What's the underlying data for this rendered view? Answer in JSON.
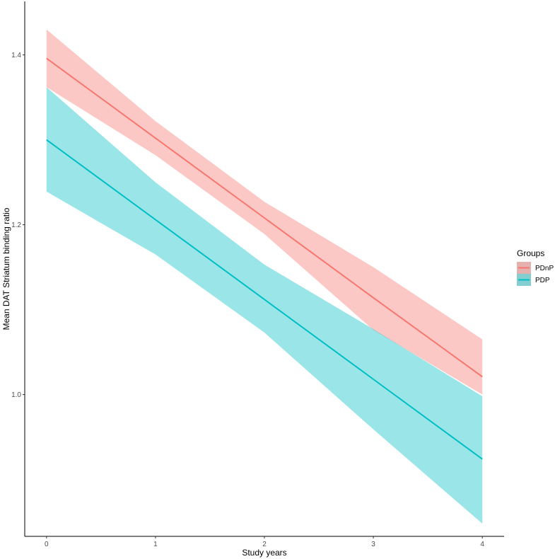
{
  "chart_data": {
    "type": "line",
    "xlabel": "Study years",
    "ylabel": "Mean DAT Striatum binding ratio",
    "xlim": [
      -0.2,
      4.2
    ],
    "ylim": [
      0.833,
      1.463
    ],
    "x_ticks": [
      0,
      1,
      2,
      3,
      4
    ],
    "y_ticks": [
      1.0,
      1.2,
      1.4
    ],
    "y_tick_labels": [
      "1.0",
      "1.2",
      "1.4"
    ],
    "x_tick_labels": [
      "0",
      "1",
      "2",
      "3",
      "4"
    ],
    "grid": false,
    "legend": {
      "title": "Groups",
      "placement": "right"
    },
    "series": [
      {
        "name": "PDnP",
        "color": "#F8766D",
        "x": [
          0,
          1,
          2,
          3,
          4
        ],
        "values": [
          1.396,
          1.302,
          1.208,
          1.114,
          1.021
        ],
        "ci_lower": [
          1.362,
          1.282,
          1.189,
          1.076,
          1.0
        ],
        "ci_upper": [
          1.43,
          1.322,
          1.227,
          1.15,
          1.065
        ]
      },
      {
        "name": "PDP",
        "color": "#00BFC4",
        "x": [
          0,
          1,
          2,
          3,
          4
        ],
        "values": [
          1.3,
          1.206,
          1.112,
          1.018,
          0.924
        ],
        "ci_lower": [
          1.239,
          1.165,
          1.073,
          0.959,
          0.848
        ],
        "ci_upper": [
          1.362,
          1.25,
          1.153,
          1.077,
          0.998
        ]
      }
    ]
  }
}
